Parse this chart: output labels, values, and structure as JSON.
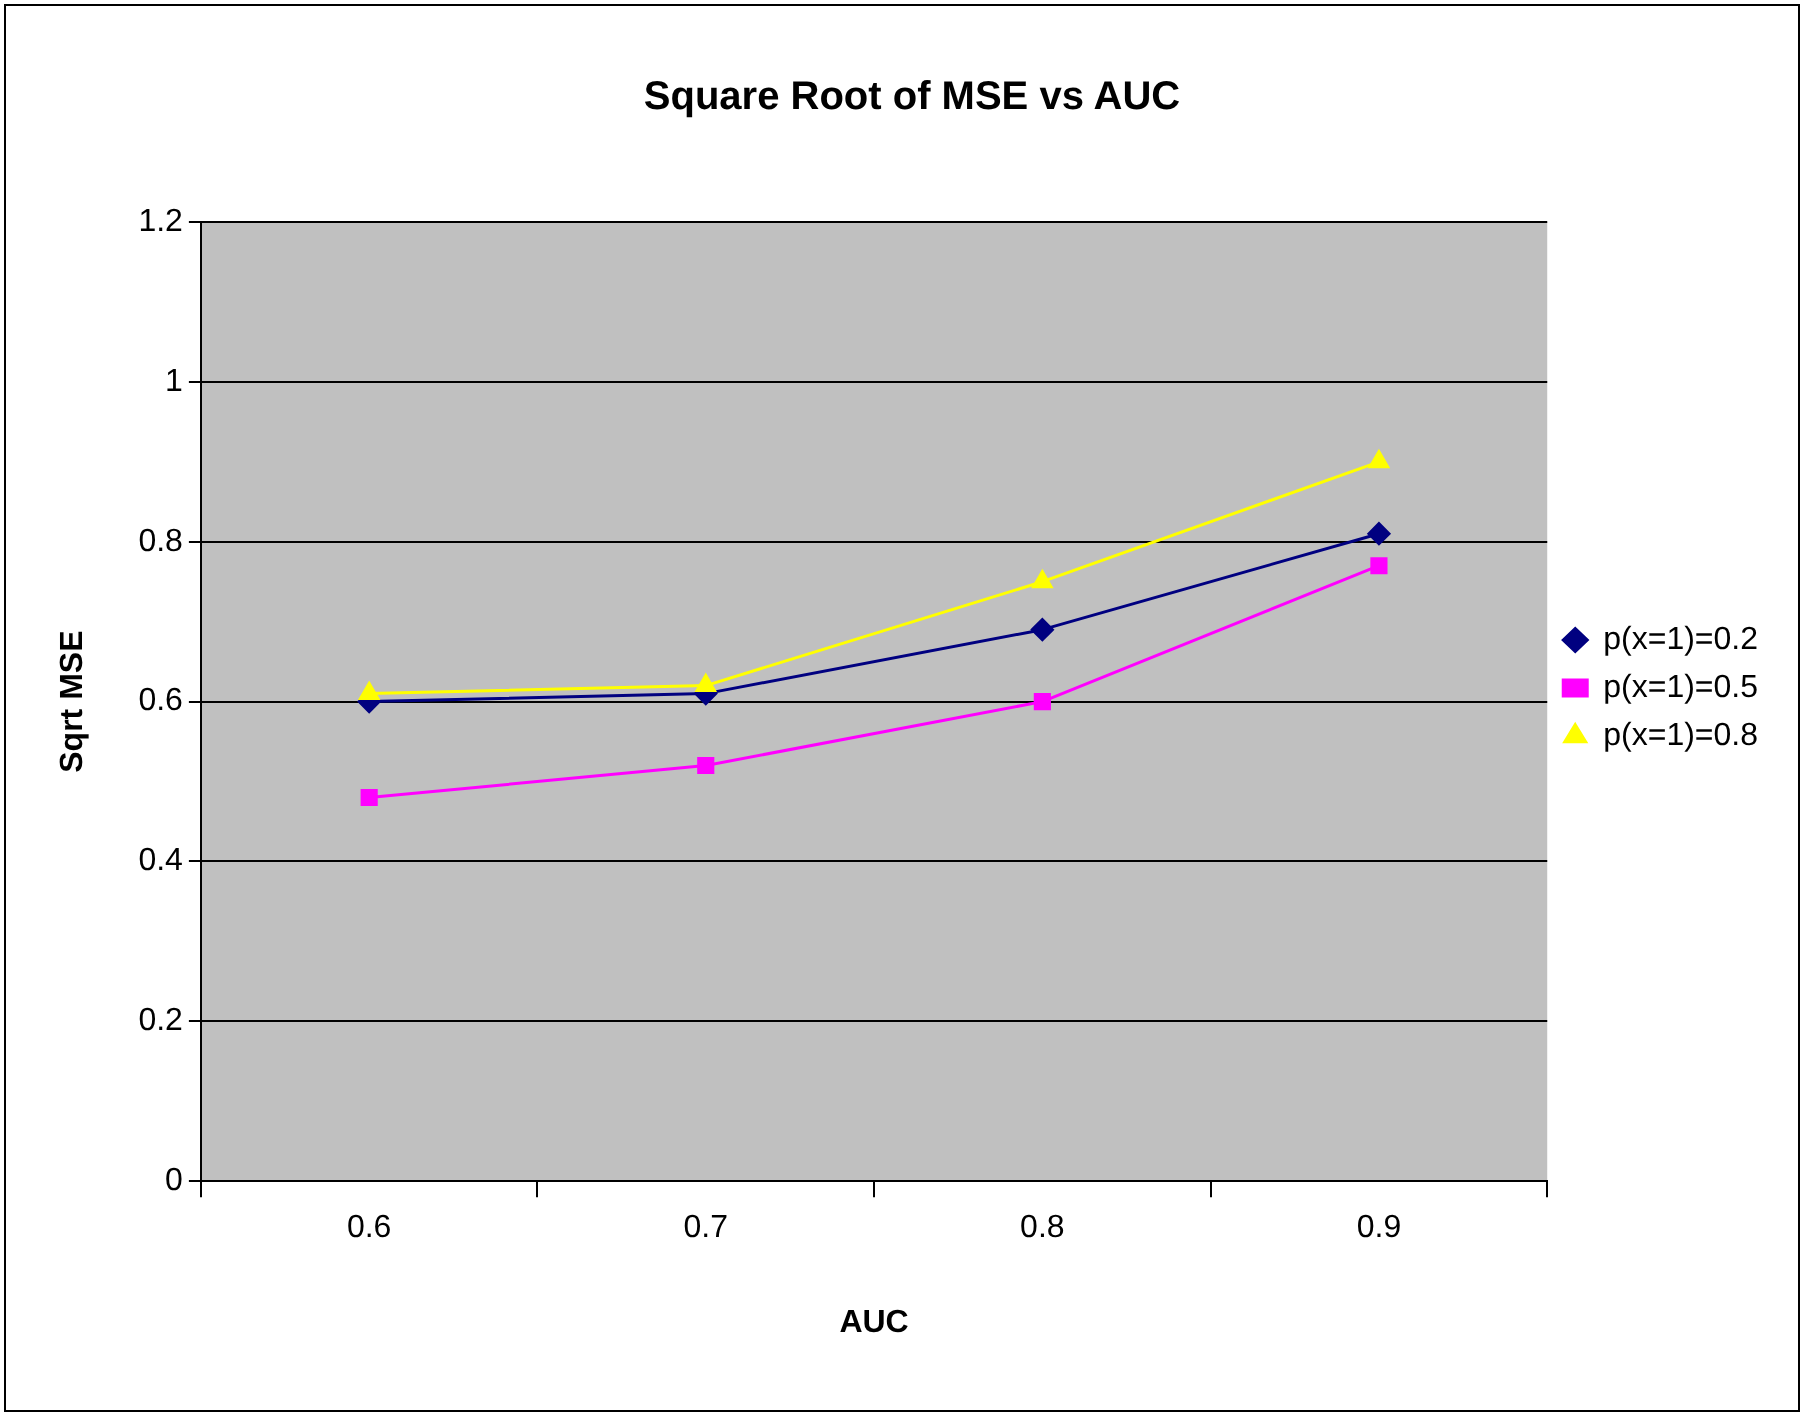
{
  "chart_data": {
    "type": "line",
    "title": "Square Root of MSE vs AUC",
    "xlabel": "AUC",
    "ylabel": "Sqrt MSE",
    "categories": [
      "0.6",
      "0.7",
      "0.8",
      "0.9"
    ],
    "series": [
      {
        "name": "p(x=1)=0.2",
        "color": "#000080",
        "marker": "diamond",
        "values": [
          0.6,
          0.61,
          0.69,
          0.81
        ]
      },
      {
        "name": "p(x=1)=0.5",
        "color": "#ff00ff",
        "marker": "square",
        "values": [
          0.48,
          0.52,
          0.6,
          0.77
        ]
      },
      {
        "name": "p(x=1)=0.8",
        "color": "#ffff00",
        "marker": "triangle",
        "values": [
          0.61,
          0.62,
          0.75,
          0.9
        ]
      }
    ],
    "ylim": [
      0,
      1.2
    ],
    "yticks": [
      0,
      0.2,
      0.4,
      0.6,
      0.8,
      1,
      1.2
    ],
    "grid": "y",
    "legend": "right"
  }
}
